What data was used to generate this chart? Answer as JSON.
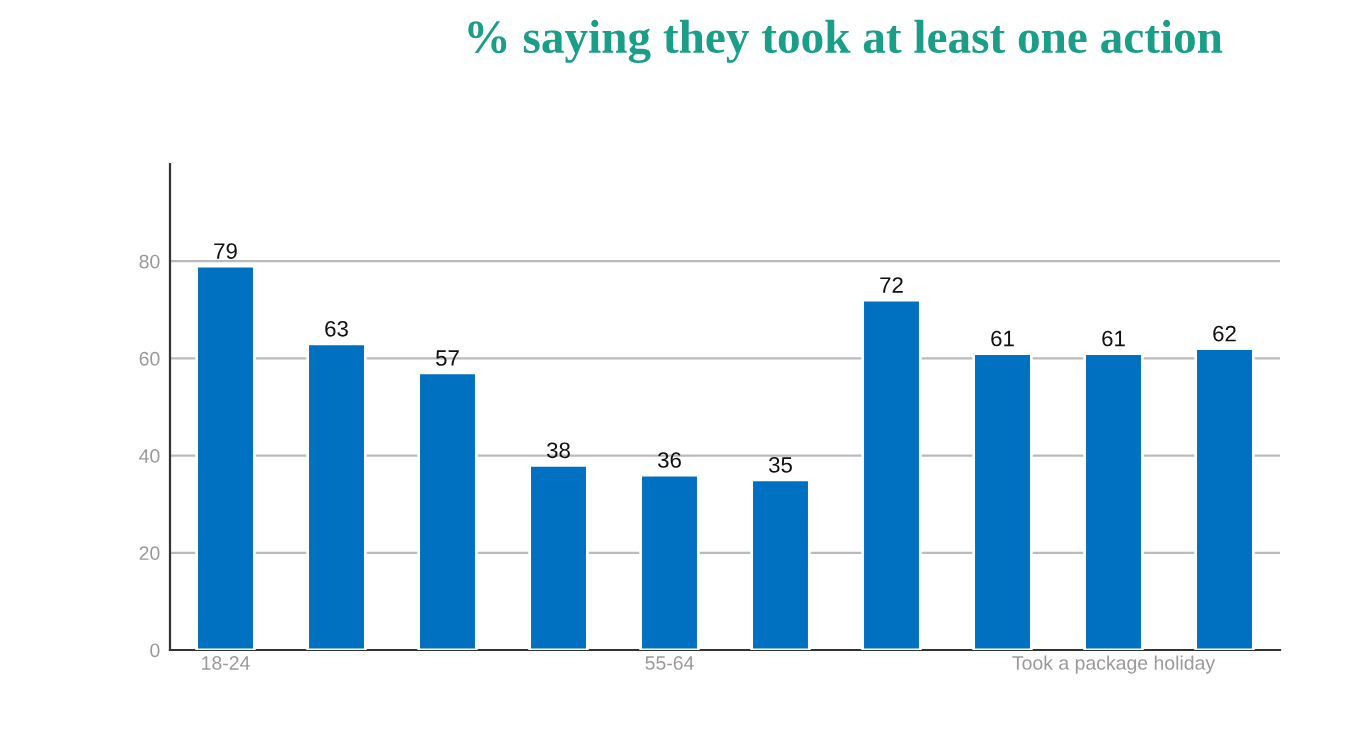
{
  "chart_data": {
    "type": "bar",
    "title": "% saying they took at least one action",
    "categories": [
      "18-24",
      null,
      null,
      null,
      "55-64",
      null,
      null,
      null,
      "Took a package holiday",
      null
    ],
    "values": [
      79,
      63,
      57,
      38,
      36,
      35,
      72,
      61,
      61,
      62
    ],
    "color": "#0070c0",
    "ylim": [
      0,
      100
    ],
    "yticks": [
      0,
      20,
      40,
      60,
      80
    ],
    "grid": "y",
    "data_labels": true
  }
}
